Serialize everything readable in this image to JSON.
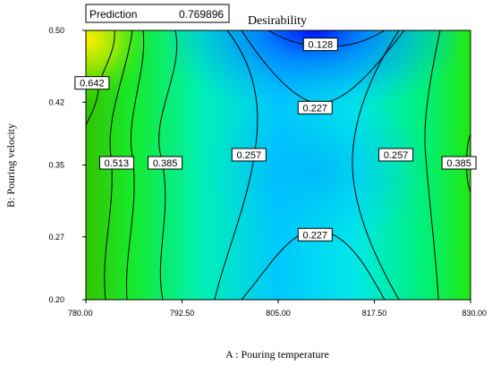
{
  "chart_data": {
    "type": "heatmap",
    "subtype": "contour",
    "title": "Desirability",
    "xlabel": "A : Pouring temperature",
    "ylabel": "B: Pouring velocity",
    "xlim": [
      780,
      830
    ],
    "ylim": [
      0.2,
      0.5
    ],
    "x_ticks": [
      "780.00",
      "792.50",
      "805.00",
      "817.50",
      "830.00"
    ],
    "y_ticks": [
      "0.20",
      "0.27",
      "0.35",
      "0.42",
      "0.50"
    ],
    "grid": false,
    "colormap": [
      "#0000ff",
      "#00a0ff",
      "#00ffff",
      "#00ff00",
      "#ffff00"
    ],
    "prediction": {
      "label": "Prediction",
      "value": "0.769896"
    },
    "contour_labels": [
      {
        "text": "0.128",
        "x": 810.5,
        "y": 0.4845
      },
      {
        "text": "0.227",
        "x": 809.8,
        "y": 0.414
      },
      {
        "text": "0.642",
        "x": 780.8,
        "y": 0.4415
      },
      {
        "text": "0.513",
        "x": 784.0,
        "y": 0.3525
      },
      {
        "text": "0.385",
        "x": 790.3,
        "y": 0.3525
      },
      {
        "text": "0.257",
        "x": 801.2,
        "y": 0.3615
      },
      {
        "text": "0.257",
        "x": 820.3,
        "y": 0.3615
      },
      {
        "text": "0.385",
        "x": 828.5,
        "y": 0.3525
      },
      {
        "text": "0.227",
        "x": 809.8,
        "y": 0.2725
      }
    ]
  }
}
